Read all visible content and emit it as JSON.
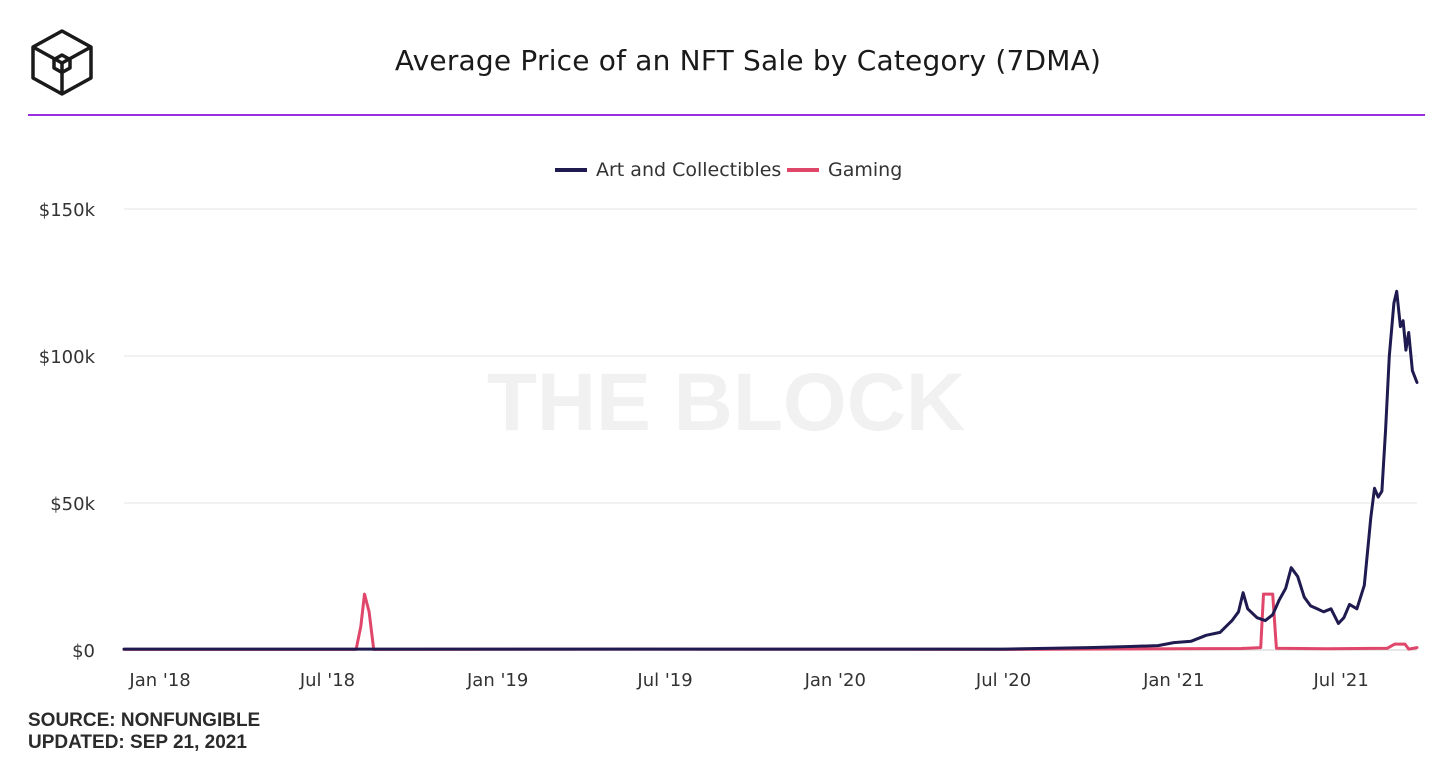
{
  "header": {
    "title": "Average Price of an NFT Sale by Category (7DMA)",
    "logo_icon": "the-block-cube-logo"
  },
  "watermark": "THE BLOCK",
  "footer": {
    "source": "SOURCE: NONFUNGIBLE",
    "updated": "UPDATED: SEP 21, 2021"
  },
  "colors": {
    "art": "#1f1a4f",
    "gaming": "#e0466a",
    "accent_rule": "#9b2de0",
    "grid": "#e6e6e6"
  },
  "chart_data": {
    "type": "line",
    "title": "Average Price of an NFT Sale by Category (7DMA)",
    "legend_position": "top-center",
    "grid": true,
    "x_range": [
      "2017-11-23",
      "2021-09-21"
    ],
    "y_range": [
      0,
      150000
    ],
    "y_ticks": [
      {
        "value": 0,
        "label": "$0"
      },
      {
        "value": 50000,
        "label": "$50k"
      },
      {
        "value": 100000,
        "label": "$100k"
      },
      {
        "value": 150000,
        "label": "$150k"
      }
    ],
    "x_ticks": [
      {
        "date": "2018-01-01",
        "label": "Jan '18"
      },
      {
        "date": "2018-07-01",
        "label": "Jul '18"
      },
      {
        "date": "2019-01-01",
        "label": "Jan '19"
      },
      {
        "date": "2019-07-01",
        "label": "Jul '19"
      },
      {
        "date": "2020-01-01",
        "label": "Jan '20"
      },
      {
        "date": "2020-07-01",
        "label": "Jul '20"
      },
      {
        "date": "2021-01-01",
        "label": "Jan '21"
      },
      {
        "date": "2021-07-01",
        "label": "Jul '21"
      }
    ],
    "series": [
      {
        "name": "Art and Collectibles",
        "color": "#1f1a4f",
        "points": [
          [
            "2017-11-23",
            300
          ],
          [
            "2018-06-01",
            300
          ],
          [
            "2019-01-01",
            300
          ],
          [
            "2019-07-01",
            300
          ],
          [
            "2020-01-01",
            300
          ],
          [
            "2020-07-01",
            300
          ],
          [
            "2020-10-01",
            800
          ],
          [
            "2020-11-15",
            1200
          ],
          [
            "2020-12-15",
            1500
          ],
          [
            "2021-01-01",
            2500
          ],
          [
            "2021-01-20",
            3000
          ],
          [
            "2021-02-05",
            5000
          ],
          [
            "2021-02-20",
            6000
          ],
          [
            "2021-03-05",
            10000
          ],
          [
            "2021-03-12",
            13000
          ],
          [
            "2021-03-17",
            19500
          ],
          [
            "2021-03-22",
            14000
          ],
          [
            "2021-04-01",
            11000
          ],
          [
            "2021-04-10",
            10000
          ],
          [
            "2021-04-18",
            12000
          ],
          [
            "2021-04-25",
            17000
          ],
          [
            "2021-05-02",
            21000
          ],
          [
            "2021-05-08",
            28000
          ],
          [
            "2021-05-15",
            25000
          ],
          [
            "2021-05-22",
            18000
          ],
          [
            "2021-05-29",
            15000
          ],
          [
            "2021-06-05",
            14000
          ],
          [
            "2021-06-12",
            13000
          ],
          [
            "2021-06-20",
            14000
          ],
          [
            "2021-06-28",
            9000
          ],
          [
            "2021-07-04",
            11000
          ],
          [
            "2021-07-10",
            15500
          ],
          [
            "2021-07-18",
            14000
          ],
          [
            "2021-07-26",
            22000
          ],
          [
            "2021-08-02",
            45000
          ],
          [
            "2021-08-06",
            55000
          ],
          [
            "2021-08-10",
            52000
          ],
          [
            "2021-08-14",
            54000
          ],
          [
            "2021-08-18",
            75000
          ],
          [
            "2021-08-22",
            100000
          ],
          [
            "2021-08-27",
            118000
          ],
          [
            "2021-08-30",
            122000
          ],
          [
            "2021-09-03",
            110000
          ],
          [
            "2021-09-06",
            112000
          ],
          [
            "2021-09-09",
            102000
          ],
          [
            "2021-09-12",
            108000
          ],
          [
            "2021-09-16",
            95000
          ],
          [
            "2021-09-21",
            91000
          ]
        ]
      },
      {
        "name": "Gaming",
        "color": "#e0466a",
        "points": [
          [
            "2017-11-23",
            200
          ],
          [
            "2018-08-01",
            200
          ],
          [
            "2018-08-06",
            8000
          ],
          [
            "2018-08-10",
            19000
          ],
          [
            "2018-08-15",
            13000
          ],
          [
            "2018-08-20",
            200
          ],
          [
            "2019-06-01",
            300
          ],
          [
            "2020-07-01",
            200
          ],
          [
            "2021-01-01",
            400
          ],
          [
            "2021-03-15",
            500
          ],
          [
            "2021-04-05",
            800
          ],
          [
            "2021-04-08",
            19000
          ],
          [
            "2021-04-18",
            19000
          ],
          [
            "2021-04-22",
            600
          ],
          [
            "2021-06-15",
            400
          ],
          [
            "2021-08-20",
            600
          ],
          [
            "2021-08-28",
            2000
          ],
          [
            "2021-09-08",
            2000
          ],
          [
            "2021-09-12",
            300
          ],
          [
            "2021-09-21",
            800
          ]
        ]
      }
    ]
  }
}
